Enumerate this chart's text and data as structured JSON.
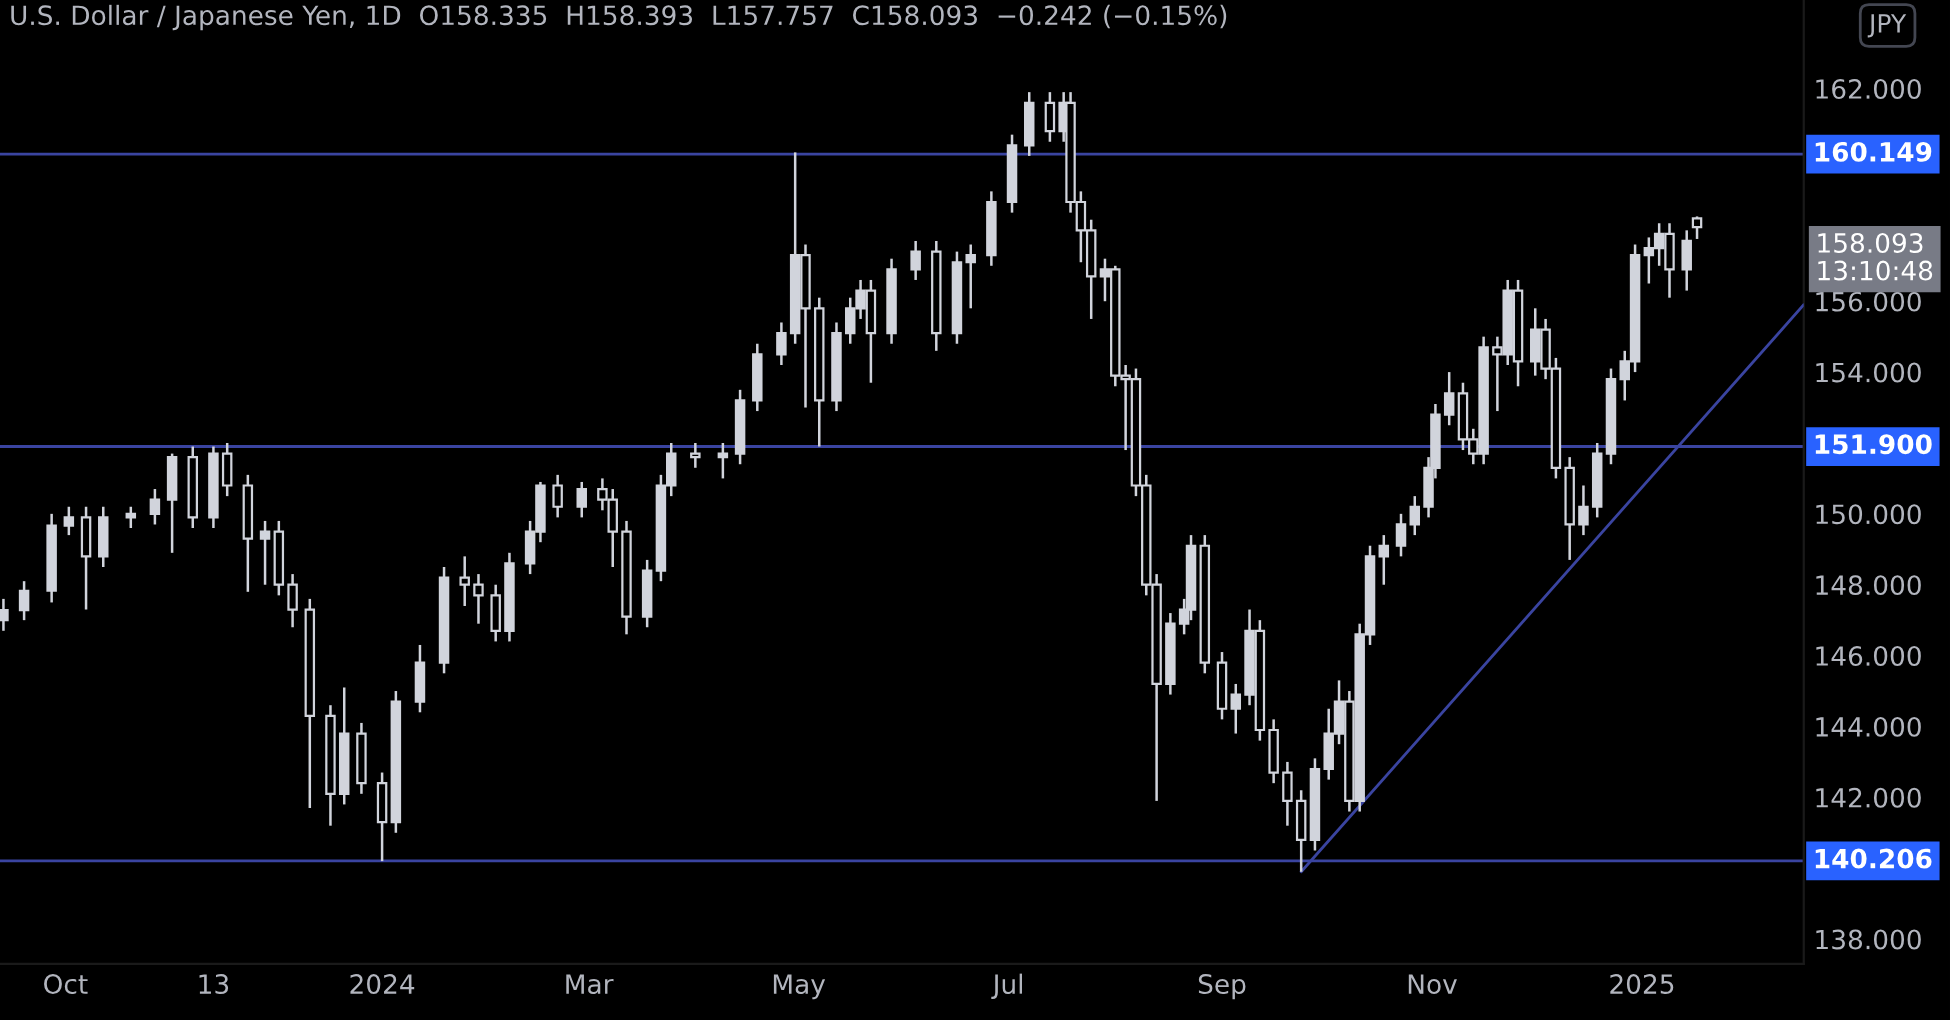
{
  "chart_data": {
    "type": "candlestick",
    "title": "U.S. Dollar / Japanese Yen, 1D  O158.335  H158.393  L157.757  C158.093  −0.242 (−0.15%)",
    "color": "#d1d4dc",
    "x": [
      "2023-09-13",
      "2023-09-19",
      "2023-09-27",
      "2023-10-02",
      "2023-10-07",
      "2023-10-12",
      "2023-10-20",
      "2023-10-27",
      "2023-11-01",
      "2023-11-07",
      "2023-11-13",
      "2023-11-17",
      "2023-11-23",
      "2023-11-28",
      "2023-12-02",
      "2023-12-06",
      "2023-12-11",
      "2023-12-17",
      "2023-12-21",
      "2023-12-26",
      "2024-01-01",
      "2024-01-05",
      "2024-01-12",
      "2024-01-19",
      "2024-01-25",
      "2024-01-29",
      "2024-02-03",
      "2024-02-07",
      "2024-02-13",
      "2024-02-16",
      "2024-02-21",
      "2024-02-28",
      "2024-03-05",
      "2024-03-08",
      "2024-03-12",
      "2024-03-18",
      "2024-03-22",
      "2024-03-25",
      "2024-04-01",
      "2024-04-09",
      "2024-04-14",
      "2024-04-19",
      "2024-04-26",
      "2024-04-30",
      "2024-05-03",
      "2024-05-07",
      "2024-05-12",
      "2024-05-16",
      "2024-05-19",
      "2024-05-22",
      "2024-05-28",
      "2024-06-04",
      "2024-06-10",
      "2024-06-16",
      "2024-06-20",
      "2024-06-26",
      "2024-07-02",
      "2024-07-07",
      "2024-07-13",
      "2024-07-17",
      "2024-07-19",
      "2024-07-22",
      "2024-07-25",
      "2024-07-29",
      "2024-08-01",
      "2024-08-04",
      "2024-08-07",
      "2024-08-10",
      "2024-08-13",
      "2024-08-17",
      "2024-08-21",
      "2024-08-23",
      "2024-08-27",
      "2024-09-01",
      "2024-09-05",
      "2024-09-09",
      "2024-09-12",
      "2024-09-16",
      "2024-09-20",
      "2024-09-24",
      "2024-09-28",
      "2024-10-02",
      "2024-10-05",
      "2024-10-08",
      "2024-10-11",
      "2024-10-14",
      "2024-10-18",
      "2024-10-23",
      "2024-10-27",
      "2024-10-31",
      "2024-11-02",
      "2024-11-06",
      "2024-11-10",
      "2024-11-13",
      "2024-11-16",
      "2024-11-20",
      "2024-11-23",
      "2024-11-26",
      "2024-12-01",
      "2024-12-04",
      "2024-12-07",
      "2024-12-11",
      "2024-12-15",
      "2024-12-19",
      "2024-12-23",
      "2024-12-27",
      "2024-12-30",
      "2025-01-03",
      "2025-01-06",
      "2025-01-09",
      "2025-01-14",
      "2025-01-17"
    ],
    "ohlc": [
      [
        147.0,
        147.6,
        146.7,
        147.28
      ],
      [
        147.28,
        148.1,
        147.0,
        147.83
      ],
      [
        147.83,
        150.0,
        147.5,
        149.67
      ],
      [
        149.67,
        150.2,
        149.4,
        149.9
      ],
      [
        149.9,
        150.2,
        147.3,
        148.8
      ],
      [
        148.8,
        150.2,
        148.5,
        149.9
      ],
      [
        149.9,
        150.2,
        149.6,
        150.0
      ],
      [
        150.0,
        150.7,
        149.7,
        150.4
      ],
      [
        150.4,
        151.7,
        148.9,
        151.6
      ],
      [
        151.6,
        151.9,
        149.6,
        149.9
      ],
      [
        149.9,
        151.9,
        149.6,
        151.7
      ],
      [
        151.7,
        152.0,
        150.5,
        150.8
      ],
      [
        150.8,
        151.1,
        147.8,
        149.3
      ],
      [
        149.3,
        149.8,
        148.0,
        149.5
      ],
      [
        149.5,
        149.8,
        147.7,
        148.0
      ],
      [
        148.0,
        148.3,
        146.8,
        147.3
      ],
      [
        147.3,
        147.6,
        141.7,
        144.3
      ],
      [
        144.3,
        144.6,
        141.2,
        142.1
      ],
      [
        142.1,
        145.1,
        141.8,
        143.8
      ],
      [
        143.8,
        144.1,
        142.1,
        142.4
      ],
      [
        142.4,
        142.7,
        140.2,
        141.3
      ],
      [
        141.3,
        145.0,
        141.0,
        144.7
      ],
      [
        144.7,
        146.3,
        144.4,
        145.8
      ],
      [
        145.8,
        148.5,
        145.5,
        148.2
      ],
      [
        148.2,
        148.8,
        147.4,
        148.0
      ],
      [
        148.0,
        148.3,
        146.9,
        147.7
      ],
      [
        147.7,
        148.0,
        146.4,
        146.7
      ],
      [
        146.7,
        148.9,
        146.4,
        148.6
      ],
      [
        148.6,
        149.8,
        148.3,
        149.5
      ],
      [
        149.5,
        150.9,
        149.2,
        150.8
      ],
      [
        150.8,
        151.1,
        149.9,
        150.2
      ],
      [
        150.2,
        150.9,
        149.9,
        150.7
      ],
      [
        150.7,
        151.0,
        150.1,
        150.4
      ],
      [
        150.4,
        150.7,
        148.5,
        149.5
      ],
      [
        149.5,
        149.8,
        146.6,
        147.1
      ],
      [
        147.1,
        148.7,
        146.8,
        148.4
      ],
      [
        148.4,
        151.1,
        148.1,
        150.8
      ],
      [
        150.8,
        152.0,
        150.5,
        151.7
      ],
      [
        151.7,
        152.0,
        151.3,
        151.6
      ],
      [
        151.6,
        152.0,
        151.0,
        151.7
      ],
      [
        151.7,
        153.5,
        151.4,
        153.2
      ],
      [
        153.2,
        154.8,
        152.9,
        154.5
      ],
      [
        154.5,
        155.4,
        154.2,
        155.1
      ],
      [
        155.1,
        160.2,
        154.8,
        157.3
      ],
      [
        157.3,
        157.6,
        153.0,
        155.8
      ],
      [
        155.8,
        156.1,
        151.9,
        153.2
      ],
      [
        153.2,
        155.4,
        152.9,
        155.1
      ],
      [
        155.1,
        156.1,
        154.8,
        155.8
      ],
      [
        155.8,
        156.6,
        155.5,
        156.3
      ],
      [
        156.3,
        156.6,
        153.7,
        155.1
      ],
      [
        155.1,
        157.2,
        154.8,
        156.9
      ],
      [
        156.9,
        157.7,
        156.6,
        157.4
      ],
      [
        157.4,
        157.7,
        154.6,
        155.1
      ],
      [
        155.1,
        157.4,
        154.8,
        157.1
      ],
      [
        157.1,
        157.6,
        155.8,
        157.3
      ],
      [
        157.3,
        159.1,
        157.0,
        158.8
      ],
      [
        158.8,
        160.7,
        158.5,
        160.4
      ],
      [
        160.4,
        161.9,
        160.1,
        161.6
      ],
      [
        161.6,
        161.9,
        160.5,
        160.8
      ],
      [
        160.8,
        161.9,
        160.5,
        161.6
      ],
      [
        161.6,
        161.9,
        158.5,
        158.8
      ],
      [
        158.8,
        159.1,
        157.1,
        158.0
      ],
      [
        158.0,
        158.3,
        155.5,
        156.7
      ],
      [
        156.7,
        157.2,
        156.0,
        156.9
      ],
      [
        156.9,
        157.0,
        153.6,
        153.9
      ],
      [
        153.9,
        154.2,
        151.8,
        153.8
      ],
      [
        153.8,
        154.1,
        150.5,
        150.8
      ],
      [
        150.8,
        151.1,
        147.7,
        148.0
      ],
      [
        148.0,
        148.3,
        141.9,
        145.2
      ],
      [
        145.2,
        147.2,
        144.9,
        146.9
      ],
      [
        146.9,
        147.6,
        146.6,
        147.3
      ],
      [
        147.3,
        149.4,
        147.0,
        149.1
      ],
      [
        149.1,
        149.4,
        145.5,
        145.8
      ],
      [
        145.8,
        146.1,
        144.2,
        144.5
      ],
      [
        144.5,
        145.2,
        143.8,
        144.9
      ],
      [
        144.9,
        147.3,
        144.6,
        146.7
      ],
      [
        146.7,
        147.0,
        143.6,
        143.9
      ],
      [
        143.9,
        144.2,
        142.4,
        142.7
      ],
      [
        142.7,
        143.0,
        141.2,
        141.9
      ],
      [
        141.9,
        142.2,
        139.9,
        140.8
      ],
      [
        140.8,
        143.1,
        140.5,
        142.8
      ],
      [
        142.8,
        144.5,
        142.5,
        143.8
      ],
      [
        143.8,
        145.3,
        143.5,
        144.7
      ],
      [
        144.7,
        145.0,
        141.6,
        141.9
      ],
      [
        141.9,
        146.9,
        141.6,
        146.6
      ],
      [
        146.6,
        149.1,
        146.3,
        148.8
      ],
      [
        148.8,
        149.4,
        148.0,
        149.1
      ],
      [
        149.1,
        150.0,
        148.8,
        149.7
      ],
      [
        149.7,
        150.5,
        149.4,
        150.2
      ],
      [
        150.2,
        151.6,
        149.9,
        151.3
      ],
      [
        151.3,
        153.1,
        151.0,
        152.8
      ],
      [
        152.8,
        154.0,
        152.5,
        153.4
      ],
      [
        153.4,
        153.7,
        151.8,
        152.1
      ],
      [
        152.1,
        152.4,
        151.4,
        151.7
      ],
      [
        151.7,
        155.0,
        151.4,
        154.7
      ],
      [
        154.7,
        155.0,
        152.9,
        154.5
      ],
      [
        154.5,
        156.6,
        154.2,
        156.3
      ],
      [
        156.3,
        156.6,
        153.6,
        154.3
      ],
      [
        154.3,
        155.8,
        153.9,
        155.2
      ],
      [
        155.2,
        155.5,
        153.8,
        154.1
      ],
      [
        154.1,
        154.4,
        151.0,
        151.3
      ],
      [
        151.3,
        151.6,
        148.7,
        149.7
      ],
      [
        149.7,
        150.8,
        149.4,
        150.2
      ],
      [
        150.2,
        152.0,
        149.9,
        151.7
      ],
      [
        151.7,
        154.1,
        151.4,
        153.8
      ],
      [
        153.8,
        154.6,
        153.2,
        154.3
      ],
      [
        154.3,
        157.6,
        154.0,
        157.3
      ],
      [
        157.3,
        157.8,
        156.5,
        157.5
      ],
      [
        157.5,
        158.2,
        157.0,
        157.9
      ],
      [
        157.9,
        158.2,
        156.1,
        156.9
      ],
      [
        156.9,
        158.0,
        156.3,
        157.7
      ],
      [
        158.335,
        158.393,
        157.757,
        158.093
      ]
    ],
    "series": [
      {
        "type": "line",
        "x": [
          "2024-09-24",
          "2025-02-17"
        ],
        "values": [
          139.9,
          155.9
        ],
        "color": "#3a44a0"
      }
    ],
    "ref_lines": [
      {
        "axis": "y",
        "value": 160.149,
        "label": "160.149",
        "color": "#3a44a0"
      },
      {
        "axis": "y",
        "value": 151.9,
        "label": "151.900",
        "color": "#3a44a0"
      },
      {
        "axis": "y",
        "value": 140.206,
        "label": "140.206",
        "color": "#3a44a0"
      }
    ],
    "annotations": [
      "JPY",
      "158.093\n13:10:48"
    ],
    "xlim": [
      "2023-09-12",
      "2025-02-17"
    ],
    "ylim": [
      137.3,
      164.5
    ],
    "xticks": [
      {
        "value": "2023-10-01",
        "label": "Oct"
      },
      {
        "value": "2023-11-13",
        "label": "13"
      },
      {
        "value": "2024-01-01",
        "label": "2024"
      },
      {
        "value": "2024-03-01",
        "label": "Mar"
      },
      {
        "value": "2024-05-01",
        "label": "May"
      },
      {
        "value": "2024-07-01",
        "label": "Jul"
      },
      {
        "value": "2024-09-01",
        "label": "Sep"
      },
      {
        "value": "2024-11-01",
        "label": "Nov"
      },
      {
        "value": "2025-01-01",
        "label": "2025"
      }
    ],
    "yticks": [
      {
        "value": 138,
        "label": "138.000"
      },
      {
        "value": 142,
        "label": "142.000"
      },
      {
        "value": 144,
        "label": "144.000"
      },
      {
        "value": 146,
        "label": "146.000"
      },
      {
        "value": 148,
        "label": "148.000"
      },
      {
        "value": 150,
        "label": "150.000"
      },
      {
        "value": 154,
        "label": "154.000"
      },
      {
        "value": 156,
        "label": "156.000"
      },
      {
        "value": 162,
        "label": "162.000"
      }
    ],
    "grid": false
  }
}
